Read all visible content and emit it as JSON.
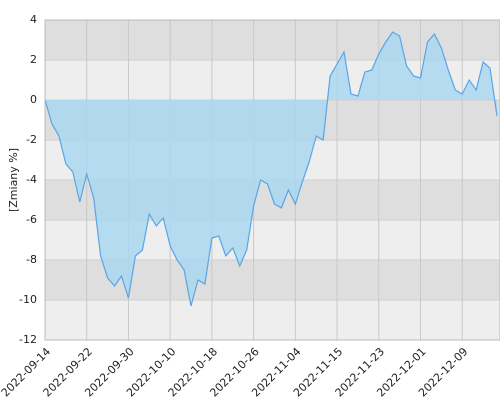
{
  "chart_data": {
    "type": "area",
    "ylabel": "[Zmiany %]",
    "categories": [
      "2022-09-14",
      null,
      null,
      null,
      null,
      null,
      "2022-09-22",
      null,
      null,
      null,
      null,
      null,
      "2022-09-30",
      null,
      null,
      null,
      null,
      null,
      "2022-10-10",
      null,
      null,
      null,
      null,
      null,
      "2022-10-18",
      null,
      null,
      null,
      null,
      null,
      "2022-10-26",
      null,
      null,
      null,
      null,
      null,
      "2022-11-04",
      null,
      null,
      null,
      null,
      null,
      "2022-11-15",
      null,
      null,
      null,
      null,
      null,
      "2022-11-23",
      null,
      null,
      null,
      null,
      null,
      "2022-12-01",
      null,
      null,
      null,
      null,
      null,
      "2022-12-09",
      null,
      null,
      null,
      null,
      null
    ],
    "values": [
      0,
      -1.2,
      -1.8,
      -3.2,
      -3.6,
      -5.1,
      -3.7,
      -4.9,
      -7.8,
      -8.9,
      -9.3,
      -8.8,
      -9.9,
      -7.8,
      -7.5,
      -5.7,
      -6.3,
      -5.9,
      -7.3,
      -8.0,
      -8.5,
      -10.3,
      -9.0,
      -9.2,
      -6.9,
      -6.8,
      -7.8,
      -7.4,
      -8.3,
      -7.5,
      -5.3,
      -4.0,
      -4.2,
      -5.2,
      -5.4,
      -4.5,
      -5.2,
      -4.1,
      -3.1,
      -1.8,
      -2.0,
      1.2,
      1.8,
      2.4,
      0.3,
      0.2,
      1.4,
      1.5,
      2.3,
      2.9,
      3.4,
      3.2,
      1.7,
      1.2,
      1.1,
      2.9,
      3.3,
      2.6,
      1.5,
      0.5,
      0.3,
      1.0,
      0.5,
      1.9,
      1.6,
      -0.8
    ],
    "color": "#5aa5e6",
    "fill": "#a9d7ee",
    "ylim": [
      -12,
      4
    ],
    "yticks": [
      -12,
      -10,
      -8,
      -6,
      -4,
      -2,
      0,
      2,
      4
    ],
    "band_colors": [
      "#dedede",
      "#eeeeee"
    ],
    "grid": true
  }
}
